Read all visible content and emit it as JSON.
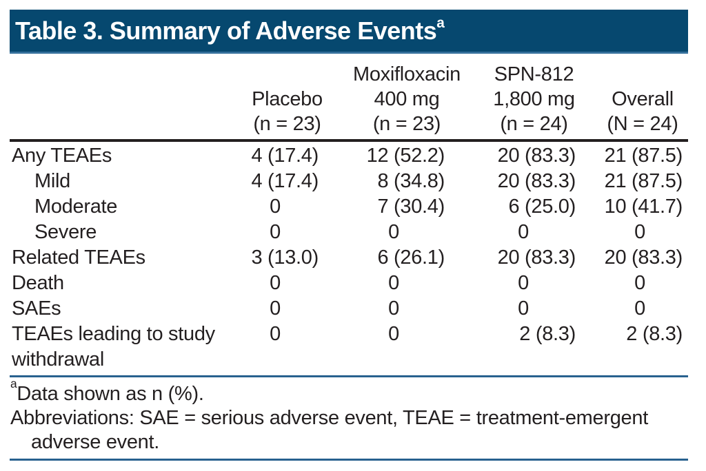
{
  "title": {
    "text": "Table 3. Summary of Adverse Events",
    "superscript": "a"
  },
  "colors": {
    "title_bar_background": "#06486f",
    "title_text": "#ffffff",
    "rule_blue": "#28618f",
    "rule_black": "#231f20",
    "body_text": "#231f20"
  },
  "chart_data": {
    "type": "table",
    "title": "Table 3. Summary of Adverse Events",
    "columns": [
      "Placebo (n = 23)",
      "Moxifloxacin 400 mg (n = 23)",
      "SPN-812 1,800 mg (n = 24)",
      "Overall (N = 24)"
    ],
    "rows": [
      {
        "label": "Any TEAEs",
        "values": [
          "4 (17.4)",
          "12 (52.2)",
          "20 (83.3)",
          "21 (87.5)"
        ]
      },
      {
        "label": "Mild",
        "values": [
          "4 (17.4)",
          "8 (34.8)",
          "20 (83.3)",
          "21 (87.5)"
        ]
      },
      {
        "label": "Moderate",
        "values": [
          "0",
          "7 (30.4)",
          "6 (25.0)",
          "10 (41.7)"
        ]
      },
      {
        "label": "Severe",
        "values": [
          "0",
          "0",
          "0",
          "0"
        ]
      },
      {
        "label": "Related TEAEs",
        "values": [
          "3 (13.0)",
          "6 (26.1)",
          "20 (83.3)",
          "20 (83.3)"
        ]
      },
      {
        "label": "Death",
        "values": [
          "0",
          "0",
          "0",
          "0"
        ]
      },
      {
        "label": "SAEs",
        "values": [
          "0",
          "0",
          "0",
          "0"
        ]
      },
      {
        "label": "TEAEs leading to study withdrawal",
        "values": [
          "0",
          "0",
          "2 (8.3)",
          "2 (8.3)"
        ]
      }
    ]
  },
  "table": {
    "columns": [
      {
        "lines": [
          "Placebo",
          "(n = 23)"
        ]
      },
      {
        "lines": [
          "Moxifloxacin",
          "400 mg",
          "(n = 23)"
        ]
      },
      {
        "lines": [
          "SPN-812",
          "1,800 mg",
          "(n = 24)"
        ]
      },
      {
        "lines": [
          "Overall",
          "(N = 24)"
        ]
      }
    ],
    "rows": [
      {
        "label": "Any TEAEs",
        "indent": false,
        "values": [
          "4 (17.4)",
          "12 (52.2)",
          "20 (83.3)",
          "21 (87.5)"
        ]
      },
      {
        "label": "Mild",
        "indent": true,
        "values": [
          "4 (17.4)",
          "8 (34.8)",
          "20 (83.3)",
          "21 (87.5)"
        ]
      },
      {
        "label": "Moderate",
        "indent": true,
        "values": [
          "0",
          "7 (30.4)",
          "6 (25.0)",
          "10 (41.7)"
        ]
      },
      {
        "label": "Severe",
        "indent": true,
        "values": [
          "0",
          "0",
          "0",
          "0"
        ]
      },
      {
        "label": "Related TEAEs",
        "indent": false,
        "values": [
          "3 (13.0)",
          "6 (26.1)",
          "20 (83.3)",
          "20 (83.3)"
        ]
      },
      {
        "label": "Death",
        "indent": false,
        "values": [
          "0",
          "0",
          "0",
          "0"
        ]
      },
      {
        "label": "SAEs",
        "indent": false,
        "values": [
          "0",
          "0",
          "0",
          "0"
        ]
      },
      {
        "label": "TEAEs leading to study withdrawal",
        "indent": false,
        "values": [
          "0",
          "0",
          "2 (8.3)",
          "2 (8.3)"
        ]
      }
    ]
  },
  "footnotes": {
    "note_a": {
      "superscript": "a",
      "text": "Data shown as n (%)."
    },
    "abbreviations": {
      "line1": "Abbreviations: SAE = serious adverse event, TEAE = treatment-emergent",
      "line2": "adverse event."
    }
  }
}
